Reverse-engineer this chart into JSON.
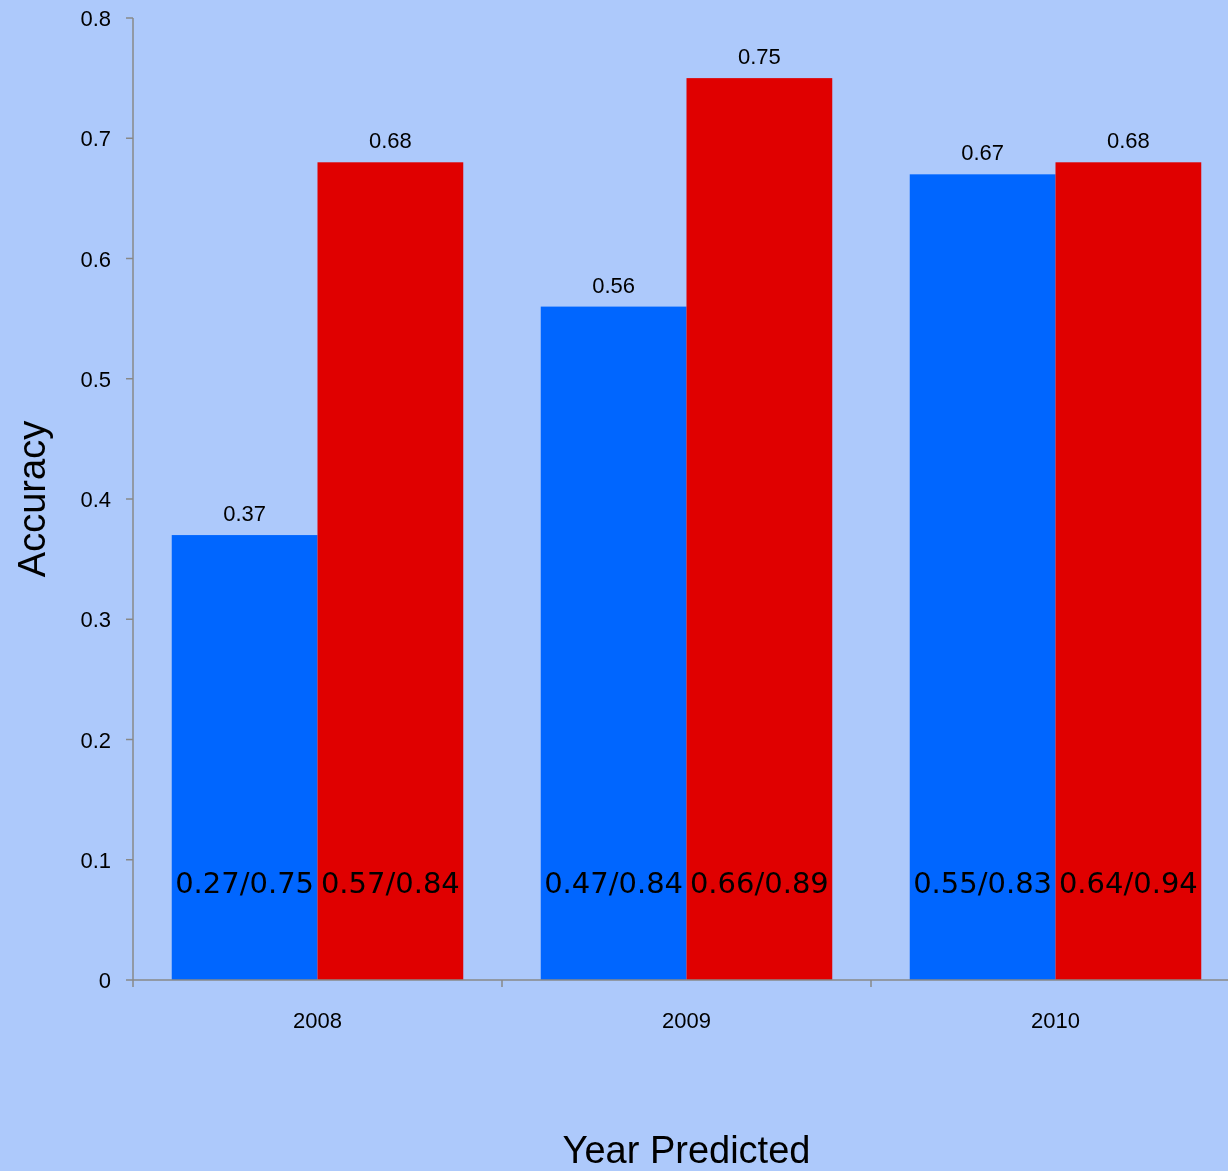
{
  "chart_data": {
    "type": "bar",
    "xlabel": "Year Predicted",
    "ylabel": "Accuracy",
    "categories": [
      "2008",
      "2009",
      "2010"
    ],
    "series": [
      {
        "color": "#0066ff",
        "values": [
          0.37,
          0.56,
          0.67
        ]
      },
      {
        "color": "#e00000",
        "values": [
          0.68,
          0.75,
          0.68
        ]
      }
    ],
    "ylim": [
      0,
      0.8
    ],
    "yticks": [
      0,
      0.1,
      0.2,
      0.3,
      0.4,
      0.5,
      0.6,
      0.7,
      0.8
    ],
    "data_labels": true,
    "grid": false,
    "annotations": [
      "0.27/0.75",
      "0.57/0.84",
      "0.47/0.84",
      "0.66/0.89",
      "0.55/0.83",
      "0.64/0.94"
    ]
  }
}
